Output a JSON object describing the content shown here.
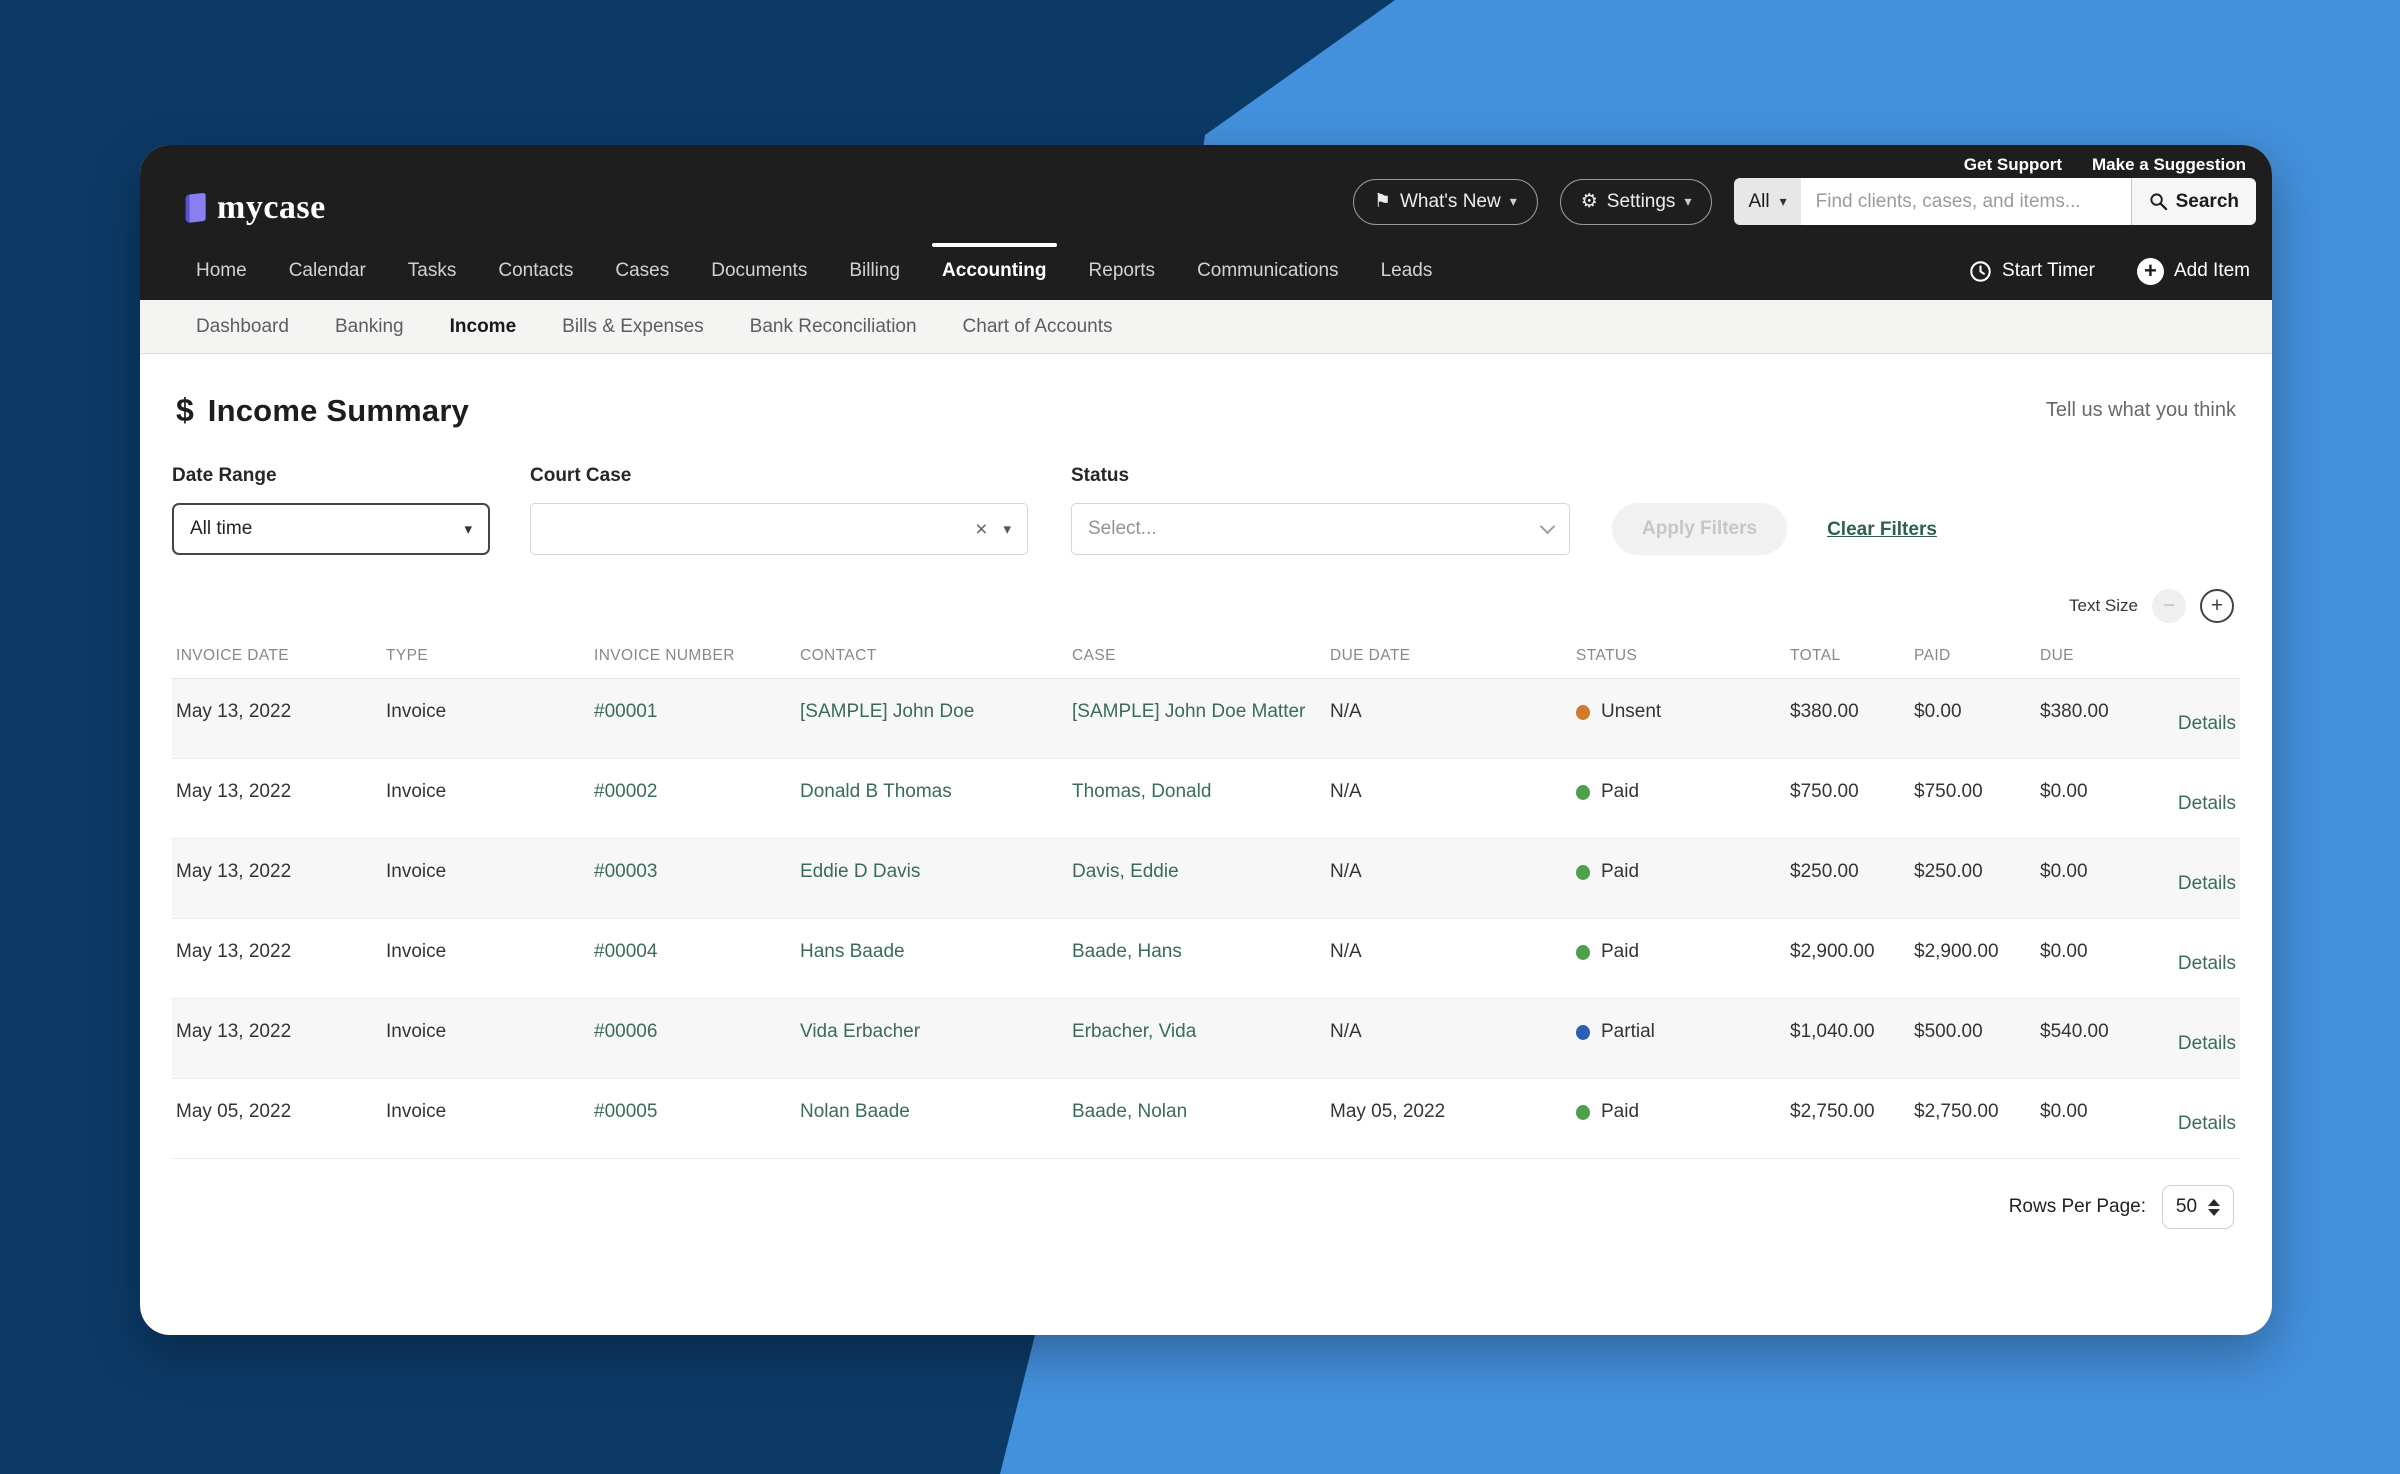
{
  "colors": {
    "bg_dark": "#0C3A67",
    "bg_light": "#4390DC",
    "header_dark": "#1E1E1E",
    "link_green": "#3A6B5C",
    "logo_purple": "#8A7FF2"
  },
  "topbar": {
    "links": [
      "Get Support",
      "Make a Suggestion"
    ]
  },
  "header": {
    "logo_text": "mycase",
    "whats_new_label": "What's New",
    "settings_label": "Settings",
    "search": {
      "scope": "All",
      "placeholder": "Find clients, cases, and items...",
      "button_label": "Search"
    }
  },
  "nav": {
    "items": [
      {
        "label": "Home",
        "active": false
      },
      {
        "label": "Calendar",
        "active": false
      },
      {
        "label": "Tasks",
        "active": false
      },
      {
        "label": "Contacts",
        "active": false
      },
      {
        "label": "Cases",
        "active": false
      },
      {
        "label": "Documents",
        "active": false
      },
      {
        "label": "Billing",
        "active": false
      },
      {
        "label": "Accounting",
        "active": true
      },
      {
        "label": "Reports",
        "active": false
      },
      {
        "label": "Communications",
        "active": false
      },
      {
        "label": "Leads",
        "active": false
      }
    ],
    "start_timer_label": "Start Timer",
    "add_item_label": "Add Item"
  },
  "subnav": {
    "items": [
      {
        "label": "Dashboard",
        "active": false
      },
      {
        "label": "Banking",
        "active": false
      },
      {
        "label": "Income",
        "active": true
      },
      {
        "label": "Bills & Expenses",
        "active": false
      },
      {
        "label": "Bank Reconciliation",
        "active": false
      },
      {
        "label": "Chart of Accounts",
        "active": false
      }
    ]
  },
  "page": {
    "title": "Income Summary",
    "title_icon": "$",
    "feedback_link": "Tell us what you think"
  },
  "filters": {
    "date_range": {
      "label": "Date Range",
      "value": "All time"
    },
    "court_case": {
      "label": "Court Case",
      "value": ""
    },
    "status": {
      "label": "Status",
      "placeholder": "Select..."
    },
    "apply_label": "Apply Filters",
    "clear_label": "Clear Filters"
  },
  "text_size": {
    "label": "Text Size",
    "minus": "−",
    "plus": "+"
  },
  "table": {
    "columns": [
      "INVOICE DATE",
      "TYPE",
      "INVOICE NUMBER",
      "CONTACT",
      "CASE",
      "DUE DATE",
      "STATUS",
      "TOTAL",
      "PAID",
      "DUE"
    ],
    "details_label": "Details",
    "status_colors": {
      "Unsent": "#D07C2E",
      "Paid": "#4CA14A",
      "Partial": "#2D5EB5"
    },
    "rows": [
      {
        "invoice_date": "May 13, 2022",
        "type": "Invoice",
        "invoice_number": "#00001",
        "contact": "[SAMPLE] John Doe",
        "case": "[SAMPLE] John Doe Matter",
        "due_date": "N/A",
        "status": "Unsent",
        "total": "$380.00",
        "paid": "$0.00",
        "due": "$380.00"
      },
      {
        "invoice_date": "May 13, 2022",
        "type": "Invoice",
        "invoice_number": "#00002",
        "contact": "Donald B Thomas",
        "case": "Thomas, Donald",
        "due_date": "N/A",
        "status": "Paid",
        "total": "$750.00",
        "paid": "$750.00",
        "due": "$0.00"
      },
      {
        "invoice_date": "May 13, 2022",
        "type": "Invoice",
        "invoice_number": "#00003",
        "contact": "Eddie D Davis",
        "case": "Davis, Eddie",
        "due_date": "N/A",
        "status": "Paid",
        "total": "$250.00",
        "paid": "$250.00",
        "due": "$0.00"
      },
      {
        "invoice_date": "May 13, 2022",
        "type": "Invoice",
        "invoice_number": "#00004",
        "contact": "Hans Baade",
        "case": "Baade, Hans",
        "due_date": "N/A",
        "status": "Paid",
        "total": "$2,900.00",
        "paid": "$2,900.00",
        "due": "$0.00"
      },
      {
        "invoice_date": "May 13, 2022",
        "type": "Invoice",
        "invoice_number": "#00006",
        "contact": "Vida Erbacher",
        "case": "Erbacher, Vida",
        "due_date": "N/A",
        "status": "Partial",
        "total": "$1,040.00",
        "paid": "$500.00",
        "due": "$540.00"
      },
      {
        "invoice_date": "May 05, 2022",
        "type": "Invoice",
        "invoice_number": "#00005",
        "contact": "Nolan Baade",
        "case": "Baade, Nolan",
        "due_date": "May 05, 2022",
        "status": "Paid",
        "total": "$2,750.00",
        "paid": "$2,750.00",
        "due": "$0.00"
      }
    ]
  },
  "pagination": {
    "label": "Rows Per Page:",
    "value": "50"
  }
}
